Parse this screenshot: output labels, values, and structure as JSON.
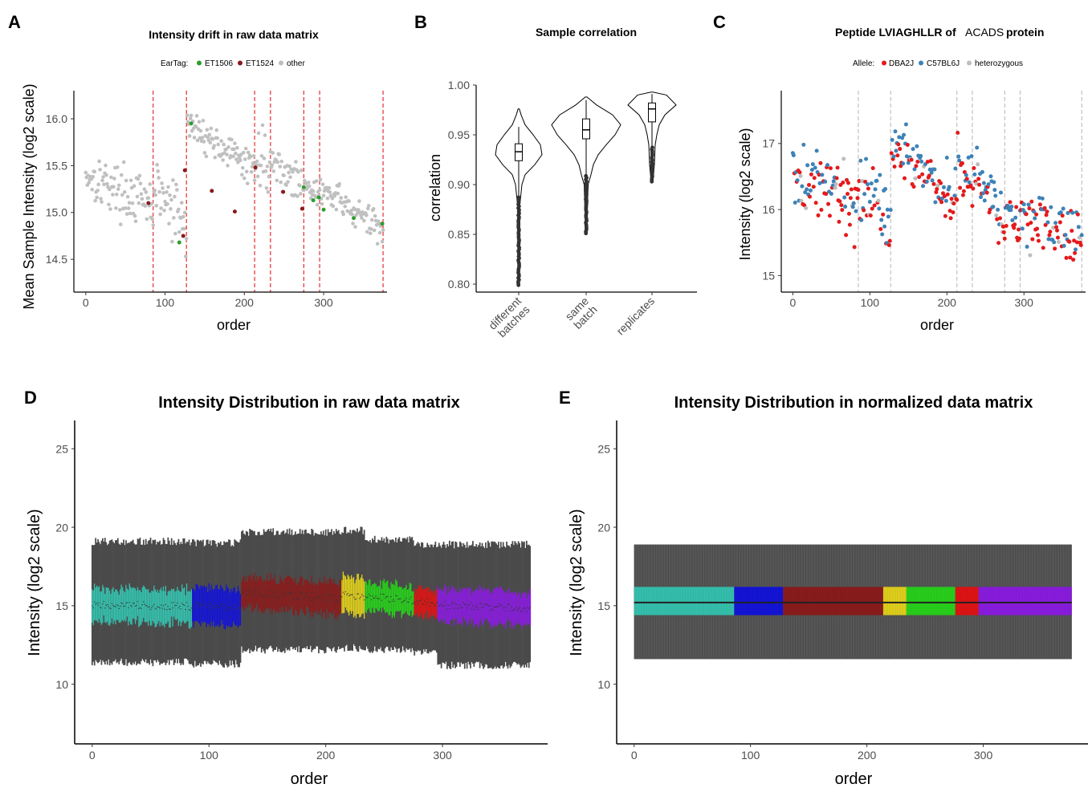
{
  "panels": [
    {
      "letter": "A",
      "title": "Intensity drift in raw data matrix"
    },
    {
      "letter": "B",
      "title": "Sample correlation"
    },
    {
      "letter": "C",
      "title_parts": [
        "Peptide LVIAGHLLR of",
        "ACADS",
        "protein"
      ]
    },
    {
      "letter": "D",
      "title": "Intensity Distribution in raw data matrix"
    },
    {
      "letter": "E",
      "title": "Intensity Distribution in normalized data matrix"
    }
  ],
  "colors": {
    "batch_lines": "#e41a1c",
    "gray_points": "#c0c0c0",
    "ET1506": "#2e9c2e",
    "ET1524": "#8b1a1a",
    "DBA2J": "#e41a1c",
    "C57BL6J": "#3e82b6",
    "heterozygous": "#bdbdbd",
    "batch_fills": [
      "#35c1ae",
      "#1414d8",
      "#8b1c1c",
      "#e0d01c",
      "#28d11c",
      "#e01414",
      "#8a1ce0"
    ]
  },
  "chart_data": [
    {
      "id": "A",
      "type": "scatter",
      "title": "Intensity drift in raw data matrix",
      "xlabel": "order",
      "ylabel": "Mean Sample Intensity (log2 scale)",
      "xlim": [
        -15,
        380
      ],
      "ylim": [
        14.15,
        16.3
      ],
      "xticks": [
        0,
        100,
        200,
        300
      ],
      "yticks": [
        14.5,
        15.0,
        15.5,
        16.0
      ],
      "ytick_labels": [
        "14.5",
        "15.0",
        "15.5",
        "16.0"
      ],
      "legend": {
        "title": "EarTag:",
        "entries": [
          "ET1506",
          "ET1524",
          "other"
        ],
        "placement": "top"
      },
      "batch_boundaries": [
        85,
        127,
        213,
        233,
        275,
        295,
        375
      ],
      "segments": [
        {
          "x": [
            0,
            85
          ],
          "y": [
            15.42,
            15.05
          ],
          "spread": 0.2,
          "step": 1
        },
        {
          "x": [
            86,
            127
          ],
          "y": [
            15.25,
            14.85
          ],
          "spread": 0.28,
          "step": 1
        },
        {
          "x": [
            128,
            213
          ],
          "y": [
            15.95,
            15.45
          ],
          "spread": 0.13,
          "step": 1
        },
        {
          "x": [
            214,
            233
          ],
          "y": [
            15.7,
            15.45
          ],
          "spread": 0.25,
          "step": 1
        },
        {
          "x": [
            234,
            275
          ],
          "y": [
            15.55,
            15.25
          ],
          "spread": 0.15,
          "step": 1
        },
        {
          "x": [
            276,
            295
          ],
          "y": [
            15.35,
            15.15
          ],
          "spread": 0.1,
          "step": 1
        },
        {
          "x": [
            296,
            375
          ],
          "y": [
            15.25,
            14.8
          ],
          "spread": 0.14,
          "step": 1
        }
      ],
      "special_points": [
        {
          "x": 118,
          "y": 14.68,
          "group": "ET1506"
        },
        {
          "x": 275,
          "y": 15.27,
          "group": "ET1506"
        },
        {
          "x": 287,
          "y": 15.13,
          "group": "ET1506"
        },
        {
          "x": 294,
          "y": 15.16,
          "group": "ET1506"
        },
        {
          "x": 300,
          "y": 15.03,
          "group": "ET1506"
        },
        {
          "x": 338,
          "y": 14.94,
          "group": "ET1506"
        },
        {
          "x": 374,
          "y": 14.88,
          "group": "ET1506"
        },
        {
          "x": 133,
          "y": 15.95,
          "group": "ET1506"
        },
        {
          "x": 79,
          "y": 15.1,
          "group": "ET1524"
        },
        {
          "x": 123,
          "y": 14.75,
          "group": "ET1524"
        },
        {
          "x": 125,
          "y": 15.45,
          "group": "ET1524"
        },
        {
          "x": 159,
          "y": 15.23,
          "group": "ET1524"
        },
        {
          "x": 188,
          "y": 15.01,
          "group": "ET1524"
        },
        {
          "x": 214,
          "y": 15.48,
          "group": "ET1524"
        },
        {
          "x": 249,
          "y": 15.22,
          "group": "ET1524"
        },
        {
          "x": 273,
          "y": 15.04,
          "group": "ET1524"
        }
      ]
    },
    {
      "id": "B",
      "type": "violin",
      "title": "Sample correlation",
      "xlabel": "",
      "ylabel": "correlation",
      "ylim": [
        0.792,
        1.0
      ],
      "yticks": [
        0.8,
        0.85,
        0.9,
        0.95,
        1.0
      ],
      "ytick_labels": [
        "0.80",
        "0.85",
        "0.90",
        "0.95",
        "1.00"
      ],
      "categories": [
        "different batches",
        "same batch",
        "replicates"
      ],
      "category_label_lines": [
        [
          "different",
          "batches"
        ],
        [
          "same",
          "batch"
        ],
        [
          "replicates"
        ]
      ],
      "violins": [
        {
          "ymin": 0.798,
          "ymax": 0.976,
          "profile": [
            [
              0.798,
              0.6
            ],
            [
              0.88,
              1.5
            ],
            [
              0.9,
              4
            ],
            [
              0.91,
              8
            ],
            [
              0.92,
              20
            ],
            [
              0.93,
              29
            ],
            [
              0.94,
              27
            ],
            [
              0.95,
              18
            ],
            [
              0.96,
              8
            ],
            [
              0.97,
              3
            ],
            [
              0.976,
              0.8
            ]
          ],
          "q1": 0.924,
          "median": 0.933,
          "q3": 0.941,
          "whisker_low": 0.889,
          "whisker_high": 0.958,
          "outliers_low": 0.799
        },
        {
          "ymin": 0.85,
          "ymax": 0.988,
          "profile": [
            [
              0.85,
              0.6
            ],
            [
              0.9,
              2.5
            ],
            [
              0.91,
              6
            ],
            [
              0.92,
              9
            ],
            [
              0.93,
              15
            ],
            [
              0.94,
              25
            ],
            [
              0.95,
              36
            ],
            [
              0.96,
              43
            ],
            [
              0.97,
              33
            ],
            [
              0.98,
              13
            ],
            [
              0.988,
              1
            ]
          ],
          "q1": 0.946,
          "median": 0.955,
          "q3": 0.966,
          "whisker_low": 0.909,
          "whisker_high": 0.985,
          "outliers_low": 0.851
        },
        {
          "ymin": 0.902,
          "ymax": 0.993,
          "profile": [
            [
              0.902,
              1
            ],
            [
              0.92,
              3
            ],
            [
              0.94,
              4
            ],
            [
              0.95,
              6
            ],
            [
              0.96,
              9
            ],
            [
              0.97,
              16
            ],
            [
              0.98,
              30
            ],
            [
              0.99,
              18
            ],
            [
              0.993,
              1
            ]
          ],
          "q1": 0.963,
          "median": 0.976,
          "q3": 0.982,
          "whisker_low": 0.938,
          "whisker_high": 0.991,
          "outliers_low": 0.903
        }
      ]
    },
    {
      "id": "C",
      "type": "scatter",
      "title": "Peptide LVIAGHLLR of ACADS protein",
      "xlabel": "order",
      "ylabel": "Intensity (log2 scale)",
      "xlim": [
        -15,
        380
      ],
      "ylim": [
        14.75,
        17.8
      ],
      "xticks": [
        0,
        100,
        200,
        300
      ],
      "yticks": [
        15,
        16,
        17
      ],
      "legend": {
        "title": "Allele:",
        "entries": [
          "DBA2J",
          "C57BL6J",
          "heterozygous"
        ],
        "placement": "top"
      },
      "batch_boundaries": [
        85,
        127,
        213,
        233,
        275,
        295,
        375
      ],
      "segments": [
        {
          "x": [
            0,
            85
          ],
          "y": [
            16.5,
            16.1
          ],
          "spread": 0.4
        },
        {
          "x": [
            86,
            127
          ],
          "y": [
            16.4,
            15.8
          ],
          "spread": 0.45
        },
        {
          "x": [
            128,
            213
          ],
          "y": [
            17.0,
            16.2
          ],
          "spread": 0.32
        },
        {
          "x": [
            214,
            233
          ],
          "y": [
            16.8,
            16.3
          ],
          "spread": 0.35
        },
        {
          "x": [
            234,
            275
          ],
          "y": [
            16.6,
            15.8
          ],
          "spread": 0.3
        },
        {
          "x": [
            276,
            295
          ],
          "y": [
            15.9,
            15.7
          ],
          "spread": 0.25
        },
        {
          "x": [
            296,
            375
          ],
          "y": [
            15.9,
            15.6
          ],
          "spread": 0.35
        }
      ]
    },
    {
      "id": "D",
      "type": "boxplot",
      "title": "Intensity Distribution in raw data matrix",
      "xlabel": "order",
      "ylabel": "Intensity (log2 scale)",
      "xlim": [
        -15,
        390
      ],
      "ylim": [
        6.2,
        26.8
      ],
      "xticks": [
        0,
        100,
        200,
        300
      ],
      "yticks": [
        10,
        15,
        20,
        25
      ],
      "batches": [
        {
          "x": [
            0,
            85
          ],
          "median": [
            15.1,
            14.95
          ],
          "iqr": 2.1,
          "lo": 11.4,
          "hi": 19.1
        },
        {
          "x": [
            86,
            127
          ],
          "median": [
            15.05,
            14.85
          ],
          "iqr": 2.3,
          "lo": 11.3,
          "hi": 19.0
        },
        {
          "x": [
            128,
            213
          ],
          "median": [
            15.85,
            15.45
          ],
          "iqr": 2.0,
          "lo": 12.2,
          "hi": 19.7
        },
        {
          "x": [
            214,
            233
          ],
          "median": [
            15.7,
            15.55
          ],
          "iqr": 2.3,
          "lo": 12.3,
          "hi": 19.8
        },
        {
          "x": [
            234,
            275
          ],
          "median": [
            15.6,
            15.35
          ],
          "iqr": 1.8,
          "lo": 12.2,
          "hi": 19.2
        },
        {
          "x": [
            276,
            295
          ],
          "median": [
            15.35,
            15.15
          ],
          "iqr": 1.7,
          "lo": 12.0,
          "hi": 18.9
        },
        {
          "x": [
            296,
            375
          ],
          "median": [
            15.05,
            14.8
          ],
          "iqr": 2.1,
          "lo": 11.2,
          "hi": 18.9
        }
      ]
    },
    {
      "id": "E",
      "type": "boxplot",
      "title": "Intensity Distribution in normalized data matrix",
      "xlabel": "order",
      "ylabel": "Intensity (log2 scale)",
      "xlim": [
        -15,
        390
      ],
      "ylim": [
        6.2,
        26.8
      ],
      "xticks": [
        0,
        100,
        200,
        300
      ],
      "yticks": [
        10,
        15,
        20,
        25
      ],
      "normalized": {
        "median": 15.2,
        "q1": 14.4,
        "q3": 16.2,
        "lo": 11.6,
        "hi": 18.9
      },
      "batch_ranges": [
        [
          0,
          85
        ],
        [
          86,
          127
        ],
        [
          128,
          213
        ],
        [
          214,
          233
        ],
        [
          234,
          275
        ],
        [
          276,
          295
        ],
        [
          296,
          375
        ]
      ]
    }
  ]
}
